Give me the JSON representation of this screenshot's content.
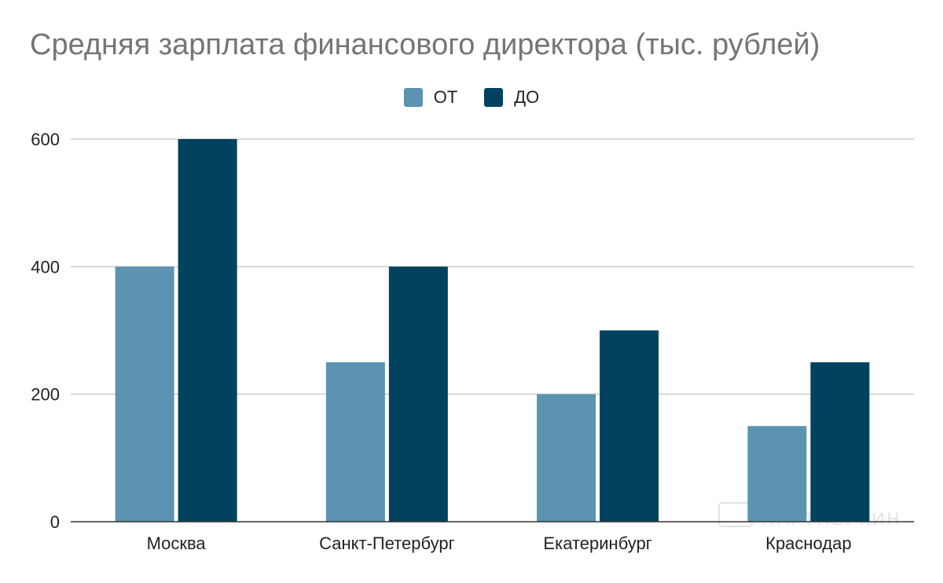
{
  "chart_data": {
    "type": "bar",
    "title": "Средняя зарплата финансового директора (тыс. рублей)",
    "categories": [
      "Москва",
      "Санкт-Петербург",
      "Екатеринбург",
      "Краснодар"
    ],
    "series": [
      {
        "name": "ОТ",
        "values": [
          400,
          250,
          200,
          150
        ],
        "color": "#5b93b0"
      },
      {
        "name": "ДО",
        "values": [
          600,
          400,
          300,
          250
        ],
        "color": "#02425f"
      }
    ],
    "yticks": [
      0,
      200,
      400,
      600
    ],
    "ylim": [
      0,
      600
    ],
    "xlabel": "",
    "ylabel": "",
    "grid": true,
    "legend_position": "top-center"
  },
  "colors": {
    "gridline": "#cccccc",
    "baseline": "#333333",
    "watermark": "#e2e2e2"
  },
  "watermark": "ПАРТНЕРКИН"
}
